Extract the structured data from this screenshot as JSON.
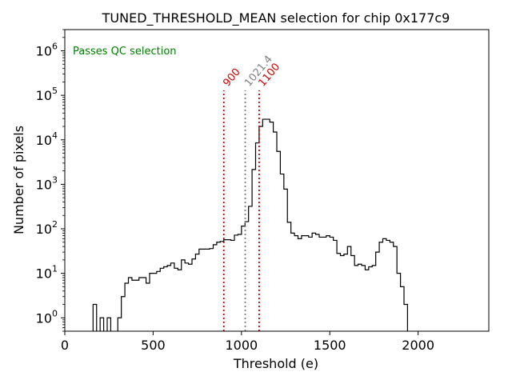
{
  "chart_data": {
    "type": "histogram-step",
    "title": "TUNED_THRESHOLD_MEAN selection for chip 0x177c9",
    "xlabel": "Threshold (e)",
    "ylabel": "Number of pixels",
    "xlim": [
      0,
      2400
    ],
    "ylim_log": [
      0.5,
      3000000
    ],
    "yscale": "log",
    "x_ticks": [
      {
        "value": 0,
        "label": "0"
      },
      {
        "value": 500,
        "label": "500"
      },
      {
        "value": 1000,
        "label": "1000"
      },
      {
        "value": 1500,
        "label": "1500"
      },
      {
        "value": 2000,
        "label": "2000"
      }
    ],
    "y_ticks": [
      {
        "value": 1,
        "label_base": "10",
        "label_exp": "0"
      },
      {
        "value": 10,
        "label_base": "10",
        "label_exp": "1"
      },
      {
        "value": 100,
        "label_base": "10",
        "label_exp": "2"
      },
      {
        "value": 1000,
        "label_base": "10",
        "label_exp": "3"
      },
      {
        "value": 10000,
        "label_base": "10",
        "label_exp": "4"
      },
      {
        "value": 100000,
        "label_base": "10",
        "label_exp": "5"
      },
      {
        "value": 1000000,
        "label_base": "10",
        "label_exp": "6"
      }
    ],
    "bin_width": 20,
    "bin_start": 160,
    "counts": [
      2,
      0,
      1,
      0,
      1,
      0,
      0,
      1,
      3,
      6,
      8,
      7,
      7,
      8,
      8,
      6,
      10,
      10,
      11,
      13,
      14,
      15,
      17,
      13,
      12,
      20,
      17,
      16,
      21,
      27,
      35,
      35,
      35,
      36,
      44,
      50,
      52,
      57,
      57,
      55,
      72,
      75,
      115,
      145,
      320,
      2150,
      8500,
      20000,
      29000,
      29000,
      25000,
      15000,
      5500,
      1700,
      780,
      140,
      80,
      70,
      60,
      70,
      70,
      65,
      80,
      75,
      65,
      65,
      70,
      65,
      55,
      28,
      25,
      27,
      40,
      25,
      15,
      16,
      15,
      12,
      14,
      15,
      30,
      50,
      60,
      55,
      50,
      40,
      10,
      5,
      2
    ],
    "cuts": [
      {
        "value": 900,
        "label": "900",
        "color": "#d00000"
      },
      {
        "value": 1021.4,
        "label": "1021.4",
        "color": "#808080"
      },
      {
        "value": 1100,
        "label": "1100",
        "color": "#d00000"
      }
    ],
    "annotation": {
      "text": "Passes QC selection",
      "color": "#008000"
    }
  }
}
